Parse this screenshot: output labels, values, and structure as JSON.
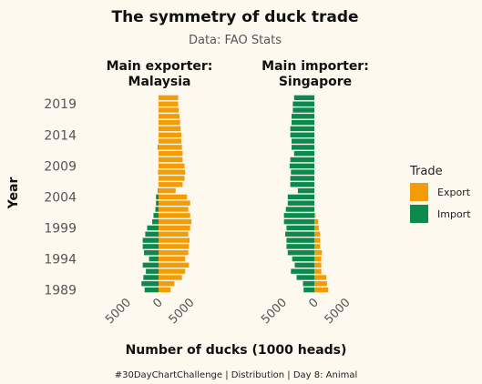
{
  "colors": {
    "background": "#fdf9ef",
    "export": "#f29d08",
    "import": "#0c8a4e"
  },
  "chart_data": {
    "type": "bar",
    "orientation": "horizontal",
    "title": "The symmetry of duck trade",
    "subtitle": "Data: FAO Stats",
    "xlabel": "Number of ducks (1000 heads)",
    "ylabel": "Year",
    "caption": "#30DayChartChallenge | Distribution | Day 8: Animal",
    "legend": {
      "title": "Trade",
      "position": "right",
      "entries": [
        "Export",
        "Import"
      ]
    },
    "x_ticks": [
      "5000",
      "0",
      "5000"
    ],
    "y_ticks": [
      "1989",
      "1994",
      "1999",
      "2004",
      "2009",
      "2014",
      "2019"
    ],
    "years": [
      1989,
      1990,
      1991,
      1992,
      1993,
      1994,
      1995,
      1996,
      1997,
      1998,
      1999,
      2000,
      2001,
      2002,
      2003,
      2004,
      2005,
      2006,
      2007,
      2008,
      2009,
      2010,
      2011,
      2012,
      2013,
      2014,
      2015,
      2016,
      2017,
      2018,
      2019,
      2020
    ],
    "panels": [
      {
        "title_line1": "Main exporter:",
        "title_line2": "Malaysia",
        "xlim": [
          -6000,
          6000
        ],
        "series": [
          {
            "name": "Export",
            "values": [
              1900,
              2500,
              3700,
              4200,
              4800,
              4200,
              4700,
              4800,
              4900,
              4700,
              5000,
              5200,
              5000,
              4700,
              5000,
              4500,
              2700,
              3800,
              4100,
              4200,
              4100,
              3800,
              3800,
              3700,
              3600,
              3600,
              3500,
              3400,
              3300,
              3200,
              3100,
              3100
            ]
          },
          {
            "name": "Import",
            "values": [
              2200,
              2700,
              2400,
              2000,
              2500,
              1500,
              2300,
              2500,
              2500,
              2100,
              1800,
              1000,
              800,
              500,
              400,
              400,
              100,
              0,
              0,
              50,
              0,
              0,
              0,
              100,
              0,
              0,
              0,
              0,
              0,
              0,
              0,
              0
            ]
          }
        ]
      },
      {
        "title_line1": "Main importer:",
        "title_line2": "Singapore",
        "xlim": [
          -6000,
          6000
        ],
        "series": [
          {
            "name": "Export",
            "values": [
              2200,
              2000,
              1900,
              1100,
              1100,
              1100,
              1200,
              900,
              900,
              900,
              700,
              600,
              200,
              0,
              0,
              0,
              0,
              0,
              0,
              0,
              0,
              0,
              0,
              0,
              0,
              0,
              0,
              0,
              0,
              0,
              0,
              0
            ]
          },
          {
            "name": "Import",
            "values": [
              1700,
              1800,
              2800,
              3700,
              3100,
              3500,
              4200,
              4400,
              4400,
              4600,
              4400,
              4800,
              4800,
              4500,
              4200,
              4200,
              2600,
              3800,
              3800,
              3700,
              3900,
              3800,
              3200,
              3600,
              3600,
              3800,
              3800,
              3600,
              3600,
              3400,
              3400,
              3200
            ]
          }
        ]
      }
    ]
  }
}
